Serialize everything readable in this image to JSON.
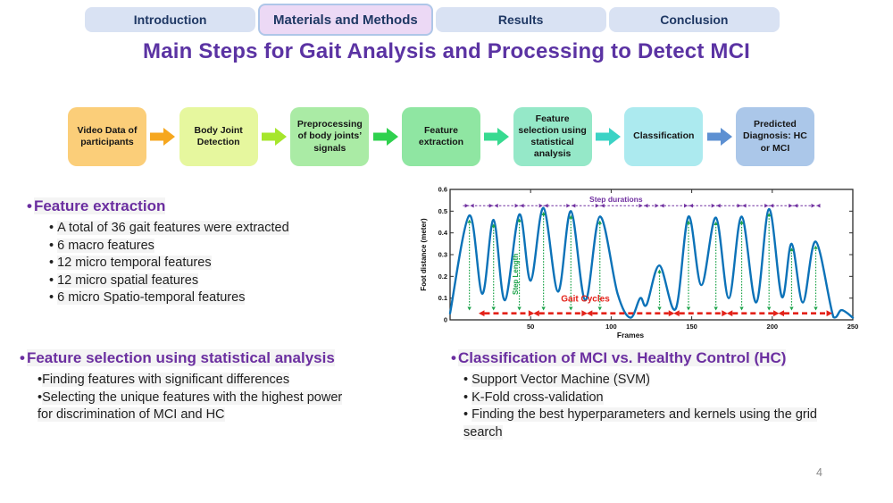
{
  "tabs": [
    {
      "label": "Introduction",
      "active": false
    },
    {
      "label": "Materials and Methods",
      "active": true
    },
    {
      "label": "Results",
      "active": false
    },
    {
      "label": "Conclusion",
      "active": false
    }
  ],
  "title": "Main Steps for Gait Analysis and Processing to Detect MCI",
  "flowchart": {
    "steps": [
      {
        "label": "Video Data of participants",
        "color": "#fbce79"
      },
      {
        "label": "Body Joint Detection",
        "color": "#e6f79e"
      },
      {
        "label": "Preprocessing of body joints’ signals",
        "color": "#aaeba5"
      },
      {
        "label": "Feature extraction",
        "color": "#8fe6a2"
      },
      {
        "label": "Feature selection using statistical analysis",
        "color": "#95e8c8"
      },
      {
        "label": "Classification",
        "color": "#aceaef"
      },
      {
        "label": "Predicted Diagnosis: HC or MCI",
        "color": "#abc7e9"
      }
    ],
    "arrow_colors": [
      "#f6a71f",
      "#a6e62c",
      "#2fd14e",
      "#37da90",
      "#3bd3c5",
      "#5d90d2"
    ]
  },
  "sections": {
    "feature_extraction": {
      "heading": "Feature extraction",
      "bullets": [
        "A total of 36 gait features were extracted",
        "6 macro features",
        "12 micro temporal features",
        "12 micro spatial features",
        "6 micro Spatio-temporal features"
      ]
    },
    "feature_selection": {
      "heading": "Feature selection using statistical analysis",
      "bullets": [
        "Finding features with significant differences",
        "Selecting the unique features with the highest power for discrimination of MCI and HC"
      ]
    },
    "classification": {
      "heading": "Classification of MCI vs. Healthy Control (HC)",
      "bullets": [
        "Support Vector Machine (SVM)",
        "K-Fold cross-validation",
        "Finding the best hyperparameters and kernels using the grid search"
      ]
    }
  },
  "page_number": "4",
  "chart_data": {
    "type": "line",
    "title": "",
    "xlabel": "Frames",
    "ylabel": "Foot distance (meter)",
    "xlim": [
      0,
      250
    ],
    "ylim": [
      0,
      0.6
    ],
    "x_ticks": [
      50,
      100,
      150,
      200,
      250
    ],
    "y_ticks": [
      0,
      0.1,
      0.2,
      0.3,
      0.4,
      0.5,
      0.6
    ],
    "grid": false,
    "series": [
      {
        "name": "foot distance",
        "color": "#0c72b8",
        "points": [
          [
            0,
            0.03
          ],
          [
            12,
            0.48
          ],
          [
            20,
            0.12
          ],
          [
            27,
            0.46
          ],
          [
            34,
            0.09
          ],
          [
            43,
            0.485
          ],
          [
            50,
            0.18
          ],
          [
            58,
            0.515
          ],
          [
            67,
            0.13
          ],
          [
            75,
            0.5
          ],
          [
            84,
            0.09
          ],
          [
            93,
            0.475
          ],
          [
            104,
            0.12
          ],
          [
            112,
            0.01
          ],
          [
            118,
            0.1
          ],
          [
            122,
            0.07
          ],
          [
            130,
            0.25
          ],
          [
            140,
            0.05
          ],
          [
            148,
            0.475
          ],
          [
            156,
            0.16
          ],
          [
            165,
            0.47
          ],
          [
            173,
            0.1
          ],
          [
            181,
            0.475
          ],
          [
            190,
            0.08
          ],
          [
            198,
            0.51
          ],
          [
            206,
            0.105
          ],
          [
            212,
            0.35
          ],
          [
            219,
            0.08
          ],
          [
            227,
            0.36
          ],
          [
            238,
            0.012
          ],
          [
            243,
            0.045
          ],
          [
            250,
            0.01
          ]
        ]
      }
    ],
    "annotations": {
      "step_durations": {
        "label": "Step durations",
        "color": "#7030a0",
        "y": 0.525,
        "x_start": 8,
        "x_end": 228,
        "marker_frames": [
          12,
          27,
          43,
          58,
          75,
          93,
          120,
          130,
          148,
          165,
          181,
          198,
          213,
          227
        ],
        "label_frame": 103
      },
      "step_length": {
        "label": "Step Length",
        "color": "#1ca34a",
        "arrow_bottom": 0.045,
        "peak_frames": [
          12,
          27,
          43,
          58,
          75,
          93,
          130,
          148,
          165,
          181,
          198,
          212,
          227
        ],
        "peak_values": [
          0.48,
          0.46,
          0.485,
          0.515,
          0.5,
          0.475,
          0.25,
          0.475,
          0.47,
          0.475,
          0.51,
          0.35,
          0.36
        ],
        "label_frame": 42,
        "label_value": 0.21
      },
      "gait_cycles": {
        "label": "Gait Cycles",
        "color": "#e32219",
        "y": 0.03,
        "boundaries": [
          18,
          52,
          85,
          139,
          172,
          204,
          237
        ],
        "label_frame": 84,
        "label_value": 0.085
      }
    }
  }
}
